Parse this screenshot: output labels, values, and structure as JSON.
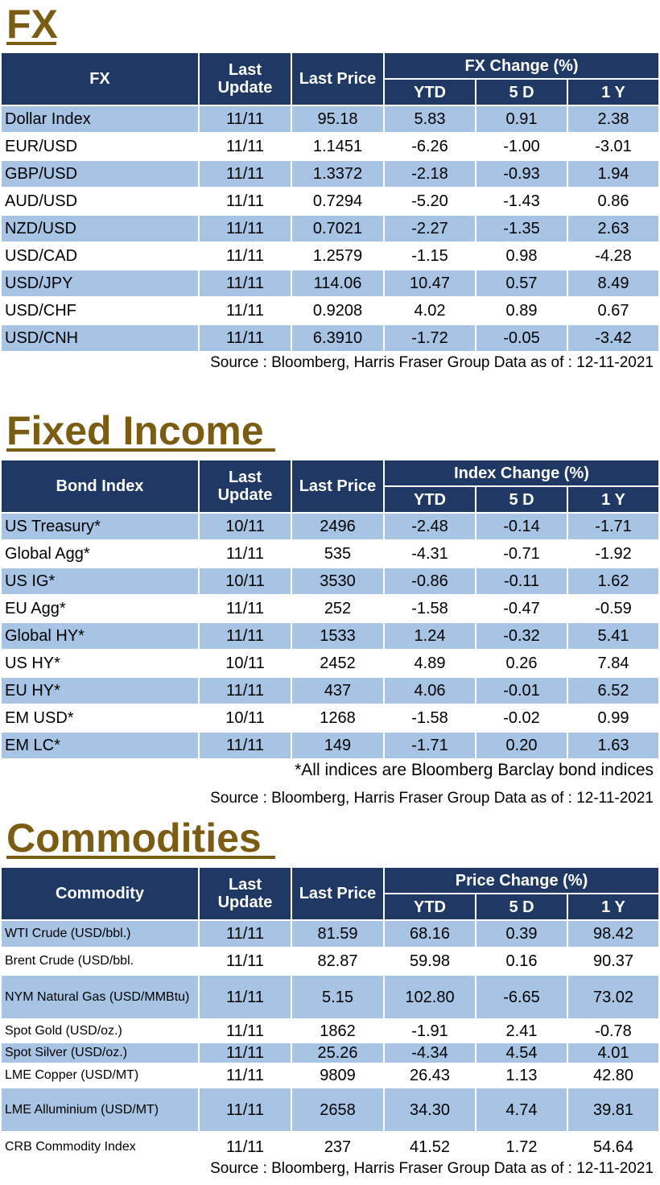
{
  "fx": {
    "title": "FX",
    "headers": {
      "name": "FX",
      "last_update": "Last Update",
      "last_price": "Last Price",
      "group": "FX Change (%)",
      "ytd": "YTD",
      "d5": "5 D",
      "y1": "1 Y"
    },
    "rows": [
      {
        "name": "Dollar Index",
        "update": "11/11",
        "price": "95.18",
        "ytd": "5.83",
        "d5": "0.91",
        "y1": "2.38"
      },
      {
        "name": "EUR/USD",
        "update": "11/11",
        "price": "1.1451",
        "ytd": "-6.26",
        "d5": "-1.00",
        "y1": "-3.01"
      },
      {
        "name": "GBP/USD",
        "update": "11/11",
        "price": "1.3372",
        "ytd": "-2.18",
        "d5": "-0.93",
        "y1": "1.94"
      },
      {
        "name": "AUD/USD",
        "update": "11/11",
        "price": "0.7294",
        "ytd": "-5.20",
        "d5": "-1.43",
        "y1": "0.86"
      },
      {
        "name": "NZD/USD",
        "update": "11/11",
        "price": "0.7021",
        "ytd": "-2.27",
        "d5": "-1.35",
        "y1": "2.63"
      },
      {
        "name": "USD/CAD",
        "update": "11/11",
        "price": "1.2579",
        "ytd": "-1.15",
        "d5": "0.98",
        "y1": "-4.28"
      },
      {
        "name": "USD/JPY",
        "update": "11/11",
        "price": "114.06",
        "ytd": "10.47",
        "d5": "0.57",
        "y1": "8.49"
      },
      {
        "name": "USD/CHF",
        "update": "11/11",
        "price": "0.9208",
        "ytd": "4.02",
        "d5": "0.89",
        "y1": "0.67"
      },
      {
        "name": "USD/CNH",
        "update": "11/11",
        "price": "6.3910",
        "ytd": "-1.72",
        "d5": "-0.05",
        "y1": "-3.42"
      }
    ],
    "source": "Source : Bloomberg, Harris Fraser Group Data as of : 12-11-2021"
  },
  "fixed_income": {
    "title": "Fixed Income",
    "headers": {
      "name": "Bond Index",
      "last_update": "Last Update",
      "last_price": "Last Price",
      "group": "Index Change (%)",
      "ytd": "YTD",
      "d5": "5 D",
      "y1": "1 Y"
    },
    "rows": [
      {
        "name": "US Treasury*",
        "update": "10/11",
        "price": "2496",
        "ytd": "-2.48",
        "d5": "-0.14",
        "y1": "-1.71"
      },
      {
        "name": "Global Agg*",
        "update": "11/11",
        "price": "535",
        "ytd": "-4.31",
        "d5": "-0.71",
        "y1": "-1.92"
      },
      {
        "name": "US IG*",
        "update": "10/11",
        "price": "3530",
        "ytd": "-0.86",
        "d5": "-0.11",
        "y1": "1.62"
      },
      {
        "name": "EU Agg*",
        "update": "11/11",
        "price": "252",
        "ytd": "-1.58",
        "d5": "-0.47",
        "y1": "-0.59"
      },
      {
        "name": "Global HY*",
        "update": "11/11",
        "price": "1533",
        "ytd": "1.24",
        "d5": "-0.32",
        "y1": "5.41"
      },
      {
        "name": "US HY*",
        "update": "10/11",
        "price": "2452",
        "ytd": "4.89",
        "d5": "0.26",
        "y1": "7.84"
      },
      {
        "name": "EU HY*",
        "update": "11/11",
        "price": "437",
        "ytd": "4.06",
        "d5": "-0.01",
        "y1": "6.52"
      },
      {
        "name": "EM USD*",
        "update": "10/11",
        "price": "1268",
        "ytd": "-1.58",
        "d5": "-0.02",
        "y1": "0.99"
      },
      {
        "name": "EM LC*",
        "update": "11/11",
        "price": "149",
        "ytd": "-1.71",
        "d5": "0.20",
        "y1": "1.63"
      }
    ],
    "footnote": "*All indices are Bloomberg Barclay bond indices",
    "source": "Source : Bloomberg, Harris Fraser Group Data as of : 12-11-2021"
  },
  "commodities": {
    "title": "Commodities",
    "headers": {
      "name": "Commodity",
      "last_update": "Last Update",
      "last_price": "Last Price",
      "group": "Price Change (%)",
      "ytd": "YTD",
      "d5": "5 D",
      "y1": "1 Y"
    },
    "rows": [
      {
        "name": "WTI Crude (USD/bbl.)",
        "update": "11/11",
        "price": "81.59",
        "ytd": "68.16",
        "d5": "0.39",
        "y1": "98.42"
      },
      {
        "name": "Brent Crude (USD/bbl.",
        "update": "11/11",
        "price": "82.87",
        "ytd": "59.98",
        "d5": "0.16",
        "y1": "90.37"
      },
      {
        "name": "NYM Natural Gas (USD/MMBtu)",
        "update": "11/11",
        "price": "5.15",
        "ytd": "102.80",
        "d5": "-6.65",
        "y1": "73.02"
      },
      {
        "name": "Spot Gold (USD/oz.)",
        "update": "11/11",
        "price": "1862",
        "ytd": "-1.91",
        "d5": "2.41",
        "y1": "-0.78"
      },
      {
        "name": "Spot Silver  (USD/oz.)",
        "update": "11/11",
        "price": "25.26",
        "ytd": "-4.34",
        "d5": "4.54",
        "y1": "4.01"
      },
      {
        "name": "LME Copper  (USD/MT)",
        "update": "11/11",
        "price": "9809",
        "ytd": "26.43",
        "d5": "1.13",
        "y1": "42.80"
      },
      {
        "name": "LME Alluminium (USD/MT)",
        "update": "11/11",
        "price": "2658",
        "ytd": "34.30",
        "d5": "4.74",
        "y1": "39.81"
      },
      {
        "name": "CRB Commodity Index",
        "update": "11/11",
        "price": "237",
        "ytd": "41.52",
        "d5": "1.72",
        "y1": "54.64"
      }
    ],
    "source": "Source : Bloomberg, Harris Fraser Group Data as of : 12-11-2021"
  },
  "colors": {
    "title": "#7a5c13",
    "header_bg": "#1f3864",
    "row_alt": "#a7c4e4"
  }
}
